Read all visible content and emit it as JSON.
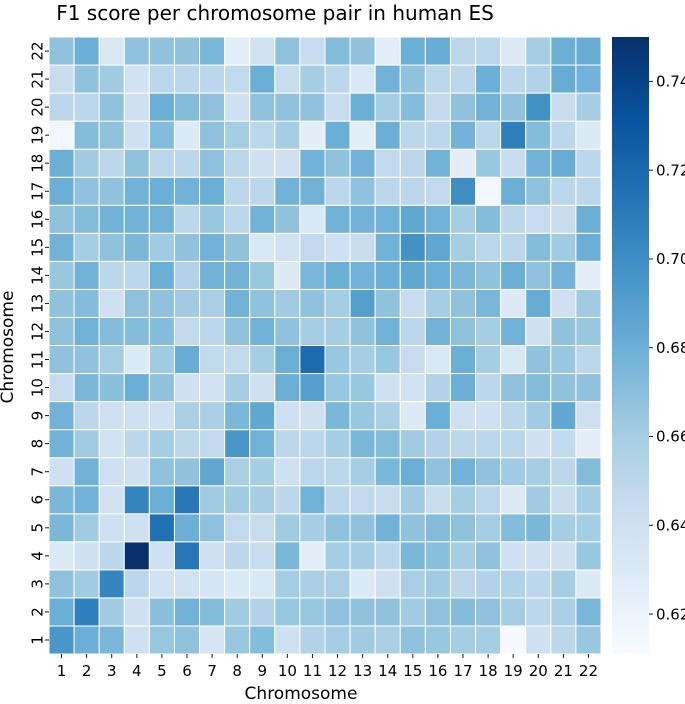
{
  "chart_data": {
    "type": "heatmap",
    "title": "F1 score per chromosome pair in human ES",
    "xlabel": "Chromosome",
    "ylabel": "Chromosome",
    "x_categories": [
      "1",
      "2",
      "3",
      "4",
      "5",
      "6",
      "7",
      "8",
      "9",
      "10",
      "11",
      "12",
      "13",
      "14",
      "15",
      "16",
      "17",
      "18",
      "19",
      "20",
      "21",
      "22"
    ],
    "y_categories": [
      "1",
      "2",
      "3",
      "4",
      "5",
      "6",
      "7",
      "8",
      "9",
      "10",
      "11",
      "12",
      "13",
      "14",
      "15",
      "16",
      "17",
      "18",
      "19",
      "20",
      "21",
      "22"
    ],
    "color_scale": {
      "min": 0.611,
      "max": 0.75,
      "ticks": [
        0.62,
        0.64,
        0.66,
        0.68,
        0.7,
        0.72,
        0.74
      ],
      "tick_labels": [
        "0.62",
        "0.64",
        "0.66",
        "0.68",
        "0.70",
        "0.72",
        "0.74"
      ],
      "colormap": "Blues",
      "stops": [
        "#f7fbff",
        "#deebf7",
        "#c6dbef",
        "#9ecae1",
        "#6baed6",
        "#4292c6",
        "#2171b5",
        "#08519c",
        "#08306b"
      ]
    },
    "gridlines": "white",
    "matrix_note_row0_is_chromosome_1": true,
    "values": [
      [
        0.695,
        0.68,
        0.675,
        0.64,
        0.665,
        0.668,
        0.635,
        0.665,
        0.672,
        0.64,
        0.655,
        0.66,
        0.662,
        0.658,
        0.668,
        0.665,
        0.66,
        0.66,
        0.612,
        0.64,
        0.65,
        0.665
      ],
      [
        0.68,
        0.708,
        0.662,
        0.64,
        0.67,
        0.678,
        0.672,
        0.662,
        0.655,
        0.665,
        0.665,
        0.668,
        0.668,
        0.668,
        0.662,
        0.668,
        0.672,
        0.668,
        0.66,
        0.65,
        0.658,
        0.675
      ],
      [
        0.668,
        0.662,
        0.705,
        0.65,
        0.638,
        0.638,
        0.635,
        0.63,
        0.632,
        0.66,
        0.658,
        0.658,
        0.63,
        0.64,
        0.658,
        0.662,
        0.65,
        0.655,
        0.655,
        0.65,
        0.66,
        0.63
      ],
      [
        0.63,
        0.64,
        0.65,
        0.75,
        0.64,
        0.712,
        0.64,
        0.65,
        0.645,
        0.675,
        0.625,
        0.66,
        0.66,
        0.65,
        0.675,
        0.67,
        0.66,
        0.668,
        0.64,
        0.64,
        0.64,
        0.665
      ],
      [
        0.675,
        0.662,
        0.64,
        0.64,
        0.715,
        0.68,
        0.668,
        0.648,
        0.645,
        0.662,
        0.66,
        0.668,
        0.668,
        0.678,
        0.668,
        0.672,
        0.668,
        0.66,
        0.672,
        0.675,
        0.66,
        0.66
      ],
      [
        0.675,
        0.678,
        0.638,
        0.705,
        0.68,
        0.712,
        0.662,
        0.662,
        0.66,
        0.65,
        0.678,
        0.65,
        0.648,
        0.645,
        0.662,
        0.645,
        0.66,
        0.65,
        0.63,
        0.662,
        0.645,
        0.66
      ],
      [
        0.64,
        0.678,
        0.64,
        0.64,
        0.668,
        0.668,
        0.685,
        0.658,
        0.66,
        0.64,
        0.65,
        0.65,
        0.66,
        0.675,
        0.68,
        0.668,
        0.678,
        0.668,
        0.662,
        0.66,
        0.65,
        0.672
      ],
      [
        0.678,
        0.662,
        0.638,
        0.65,
        0.66,
        0.65,
        0.648,
        0.695,
        0.678,
        0.65,
        0.65,
        0.66,
        0.675,
        0.672,
        0.662,
        0.655,
        0.65,
        0.65,
        0.65,
        0.64,
        0.648,
        0.625
      ],
      [
        0.678,
        0.65,
        0.64,
        0.64,
        0.64,
        0.658,
        0.658,
        0.675,
        0.685,
        0.64,
        0.64,
        0.675,
        0.665,
        0.658,
        0.63,
        0.68,
        0.64,
        0.64,
        0.65,
        0.662,
        0.685,
        0.64
      ],
      [
        0.645,
        0.675,
        0.67,
        0.68,
        0.668,
        0.64,
        0.638,
        0.66,
        0.64,
        0.68,
        0.69,
        0.665,
        0.665,
        0.64,
        0.638,
        0.655,
        0.68,
        0.65,
        0.668,
        0.672,
        0.668,
        0.668
      ],
      [
        0.668,
        0.668,
        0.66,
        0.63,
        0.662,
        0.682,
        0.648,
        0.648,
        0.66,
        0.68,
        0.718,
        0.665,
        0.66,
        0.665,
        0.645,
        0.632,
        0.68,
        0.66,
        0.632,
        0.668,
        0.665,
        0.65
      ],
      [
        0.668,
        0.678,
        0.672,
        0.672,
        0.672,
        0.648,
        0.65,
        0.668,
        0.678,
        0.668,
        0.66,
        0.66,
        0.668,
        0.678,
        0.65,
        0.678,
        0.668,
        0.66,
        0.678,
        0.64,
        0.668,
        0.665
      ],
      [
        0.668,
        0.672,
        0.64,
        0.668,
        0.668,
        0.662,
        0.658,
        0.678,
        0.668,
        0.662,
        0.668,
        0.66,
        0.69,
        0.668,
        0.645,
        0.66,
        0.668,
        0.675,
        0.63,
        0.682,
        0.64,
        0.662
      ],
      [
        0.665,
        0.678,
        0.65,
        0.65,
        0.68,
        0.655,
        0.678,
        0.678,
        0.665,
        0.63,
        0.675,
        0.68,
        0.678,
        0.68,
        0.685,
        0.68,
        0.675,
        0.668,
        0.68,
        0.668,
        0.678,
        0.625
      ],
      [
        0.678,
        0.66,
        0.668,
        0.675,
        0.662,
        0.668,
        0.678,
        0.668,
        0.632,
        0.638,
        0.648,
        0.64,
        0.645,
        0.678,
        0.698,
        0.685,
        0.66,
        0.65,
        0.65,
        0.672,
        0.662,
        0.68
      ],
      [
        0.668,
        0.672,
        0.678,
        0.678,
        0.678,
        0.65,
        0.665,
        0.65,
        0.678,
        0.668,
        0.632,
        0.678,
        0.678,
        0.678,
        0.685,
        0.678,
        0.66,
        0.672,
        0.65,
        0.645,
        0.645,
        0.68
      ],
      [
        0.68,
        0.668,
        0.668,
        0.678,
        0.68,
        0.678,
        0.68,
        0.65,
        0.65,
        0.678,
        0.678,
        0.65,
        0.668,
        0.65,
        0.65,
        0.648,
        0.7,
        0.615,
        0.68,
        0.668,
        0.65,
        0.65
      ],
      [
        0.68,
        0.662,
        0.65,
        0.668,
        0.65,
        0.65,
        0.668,
        0.65,
        0.64,
        0.64,
        0.678,
        0.668,
        0.678,
        0.648,
        0.65,
        0.678,
        0.625,
        0.665,
        0.645,
        0.678,
        0.682,
        0.65
      ],
      [
        0.615,
        0.672,
        0.668,
        0.64,
        0.672,
        0.63,
        0.668,
        0.66,
        0.65,
        0.66,
        0.625,
        0.68,
        0.625,
        0.68,
        0.65,
        0.65,
        0.678,
        0.65,
        0.708,
        0.672,
        0.65,
        0.63
      ],
      [
        0.65,
        0.65,
        0.668,
        0.64,
        0.68,
        0.672,
        0.668,
        0.64,
        0.668,
        0.668,
        0.668,
        0.645,
        0.68,
        0.66,
        0.672,
        0.648,
        0.668,
        0.678,
        0.668,
        0.698,
        0.645,
        0.66
      ],
      [
        0.645,
        0.668,
        0.662,
        0.638,
        0.65,
        0.65,
        0.65,
        0.648,
        0.68,
        0.645,
        0.66,
        0.65,
        0.632,
        0.678,
        0.668,
        0.65,
        0.65,
        0.68,
        0.65,
        0.655,
        0.682,
        0.678
      ],
      [
        0.668,
        0.68,
        0.632,
        0.668,
        0.668,
        0.668,
        0.675,
        0.625,
        0.638,
        0.668,
        0.645,
        0.672,
        0.668,
        0.625,
        0.68,
        0.682,
        0.65,
        0.65,
        0.63,
        0.66,
        0.68,
        0.682
      ]
    ]
  }
}
